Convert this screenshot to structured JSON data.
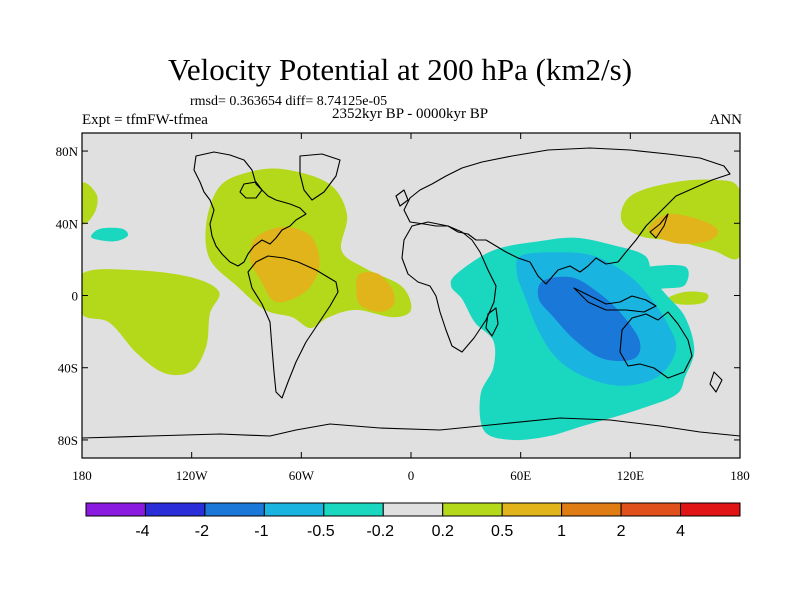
{
  "chart_data": {
    "type": "heatmap",
    "title": "Velocity Potential at 200 hPa (km2/s)",
    "stats_text": "rmsd= 0.363654 diff= 8.74125e-05",
    "subtitle": "2352kyr BP - 0000kyr BP",
    "left_label": "Expt = tfmFW-tfmea",
    "right_label": "ANN",
    "x_range": [
      -180,
      180
    ],
    "y_range": [
      -90,
      90
    ],
    "x_ticks": [
      {
        "value": -180,
        "label": "180"
      },
      {
        "value": -120,
        "label": "120W"
      },
      {
        "value": -60,
        "label": "60W"
      },
      {
        "value": 0,
        "label": "0"
      },
      {
        "value": 60,
        "label": "60E"
      },
      {
        "value": 120,
        "label": "120E"
      },
      {
        "value": 180,
        "label": "180"
      }
    ],
    "y_ticks": [
      {
        "value": 80,
        "label": "80N"
      },
      {
        "value": 40,
        "label": "40N"
      },
      {
        "value": 0,
        "label": "0"
      },
      {
        "value": -40,
        "label": "40S"
      },
      {
        "value": -80,
        "label": "80S"
      }
    ],
    "colorbar": {
      "colors": [
        "#8a1ae0",
        "#2a2ed8",
        "#1a78d8",
        "#1ab4e0",
        "#1ad8c0",
        "#e0e0e0",
        "#b4d81a",
        "#e0b41a",
        "#e07c14",
        "#e0501a",
        "#e01414"
      ],
      "labels": [
        "-4",
        "-2",
        "-1",
        "-0.5",
        "-0.2",
        "0.2",
        "0.5",
        "1",
        "2",
        "4"
      ]
    },
    "background_color": "#e0e0e0",
    "regions": [
      {
        "name": "tropical-atlantic-positive",
        "color": "#b4d81a",
        "level": 0.5,
        "points": [
          [
            -105,
            60
          ],
          [
            -90,
            68
          ],
          [
            -70,
            70
          ],
          [
            -45,
            62
          ],
          [
            -35,
            45
          ],
          [
            -38,
            25
          ],
          [
            -25,
            15
          ],
          [
            -5,
            5
          ],
          [
            0,
            -8
          ],
          [
            -10,
            -12
          ],
          [
            -30,
            -8
          ],
          [
            -45,
            -12
          ],
          [
            -55,
            -18
          ],
          [
            -65,
            -12
          ],
          [
            -80,
            -8
          ],
          [
            -95,
            5
          ],
          [
            -110,
            20
          ],
          [
            -112,
            40
          ]
        ]
      },
      {
        "name": "atlantic-core-positive",
        "color": "#e0b41a",
        "level": 1,
        "points": [
          [
            -85,
            32
          ],
          [
            -70,
            38
          ],
          [
            -55,
            33
          ],
          [
            -50,
            18
          ],
          [
            -55,
            5
          ],
          [
            -65,
            -2
          ],
          [
            -75,
            -3
          ],
          [
            -82,
            8
          ],
          [
            -88,
            20
          ]
        ]
      },
      {
        "name": "south-america-core-positive",
        "color": "#e0b41a",
        "level": 1,
        "points": [
          [
            -28,
            12
          ],
          [
            -18,
            12
          ],
          [
            -10,
            3
          ],
          [
            -10,
            -6
          ],
          [
            -18,
            -9
          ],
          [
            -28,
            -5
          ],
          [
            -30,
            5
          ]
        ]
      },
      {
        "name": "east-pacific-positive",
        "color": "#b4d81a",
        "level": 0.5,
        "points": [
          [
            -180,
            12
          ],
          [
            -150,
            14
          ],
          [
            -120,
            10
          ],
          [
            -105,
            2
          ],
          [
            -110,
            -10
          ],
          [
            -112,
            -28
          ],
          [
            -120,
            -42
          ],
          [
            -135,
            -43
          ],
          [
            -150,
            -32
          ],
          [
            -165,
            -15
          ],
          [
            -180,
            -10
          ]
        ]
      },
      {
        "name": "dateline-west-positive",
        "color": "#b4d81a",
        "level": 0.5,
        "points": [
          [
            -180,
            40
          ],
          [
            -173,
            46
          ],
          [
            -172,
            56
          ],
          [
            -180,
            62
          ]
        ]
      },
      {
        "name": "north-pacific-positive",
        "color": "#b4d81a",
        "level": 0.5,
        "points": [
          [
            115,
            42
          ],
          [
            120,
            55
          ],
          [
            140,
            62
          ],
          [
            165,
            64
          ],
          [
            180,
            58
          ],
          [
            180,
            22
          ],
          [
            165,
            25
          ],
          [
            145,
            30
          ],
          [
            125,
            33
          ]
        ]
      },
      {
        "name": "north-pacific-core-positive",
        "color": "#e0b41a",
        "level": 1,
        "points": [
          [
            130,
            36
          ],
          [
            140,
            45
          ],
          [
            158,
            42
          ],
          [
            168,
            36
          ],
          [
            162,
            30
          ],
          [
            145,
            29
          ]
        ]
      },
      {
        "name": "pacific-small-positive",
        "color": "#b4d81a",
        "level": 0.5,
        "points": [
          [
            140,
            -2
          ],
          [
            150,
            2
          ],
          [
            162,
            1
          ],
          [
            160,
            -4
          ],
          [
            148,
            -5
          ]
        ]
      },
      {
        "name": "indian-ocean-negative",
        "color": "#1ad8c0",
        "level": -0.2,
        "points": [
          [
            25,
            12
          ],
          [
            45,
            25
          ],
          [
            70,
            30
          ],
          [
            90,
            32
          ],
          [
            110,
            28
          ],
          [
            128,
            22
          ],
          [
            132,
            10
          ],
          [
            140,
            0
          ],
          [
            150,
            -12
          ],
          [
            155,
            -30
          ],
          [
            150,
            -45
          ],
          [
            145,
            -55
          ],
          [
            125,
            -63
          ],
          [
            95,
            -72
          ],
          [
            75,
            -78
          ],
          [
            55,
            -80
          ],
          [
            40,
            -75
          ],
          [
            38,
            -55
          ],
          [
            45,
            -40
          ],
          [
            45,
            -25
          ],
          [
            35,
            -15
          ],
          [
            28,
            -2
          ],
          [
            22,
            5
          ]
        ]
      },
      {
        "name": "west-pacific-negative",
        "color": "#1ad8c0",
        "level": -0.2,
        "points": [
          [
            115,
            12
          ],
          [
            130,
            16
          ],
          [
            150,
            16
          ],
          [
            150,
            6
          ],
          [
            140,
            4
          ],
          [
            125,
            4
          ]
        ]
      },
      {
        "name": "north-pacific-small-negative",
        "color": "#1ad8c0",
        "level": -0.2,
        "points": [
          [
            -175,
            33
          ],
          [
            -170,
            37
          ],
          [
            -158,
            37
          ],
          [
            -155,
            33
          ],
          [
            -162,
            30
          ],
          [
            -172,
            31
          ]
        ]
      },
      {
        "name": "indian-ocean-mid-negative",
        "color": "#1ab4e0",
        "level": -0.5,
        "points": [
          [
            60,
            22
          ],
          [
            80,
            24
          ],
          [
            100,
            22
          ],
          [
            118,
            12
          ],
          [
            130,
            0
          ],
          [
            140,
            -15
          ],
          [
            145,
            -30
          ],
          [
            135,
            -45
          ],
          [
            115,
            -50
          ],
          [
            95,
            -45
          ],
          [
            80,
            -35
          ],
          [
            70,
            -20
          ],
          [
            62,
            0
          ],
          [
            58,
            12
          ]
        ]
      },
      {
        "name": "indian-ocean-core-negative",
        "color": "#1a78d8",
        "level": -1,
        "points": [
          [
            72,
            8
          ],
          [
            88,
            10
          ],
          [
            102,
            2
          ],
          [
            115,
            -10
          ],
          [
            125,
            -25
          ],
          [
            122,
            -35
          ],
          [
            105,
            -35
          ],
          [
            90,
            -25
          ],
          [
            78,
            -12
          ],
          [
            70,
            -2
          ]
        ]
      }
    ]
  }
}
